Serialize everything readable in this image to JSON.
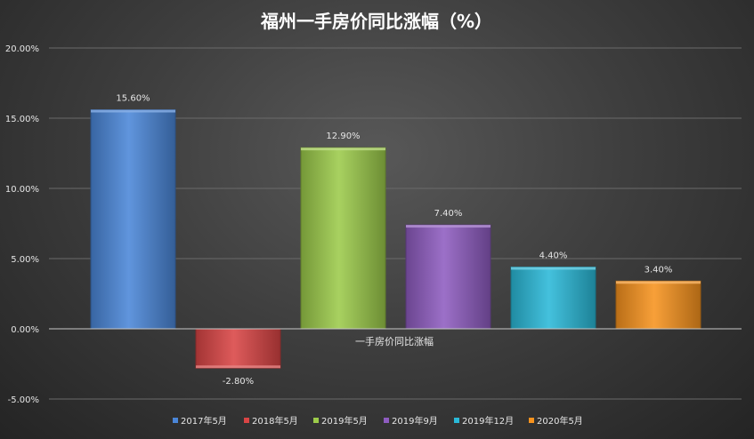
{
  "chart_data": {
    "type": "bar",
    "title": "福州一手房价同比涨幅（%）",
    "category_label": "一手房价同比涨幅",
    "series": [
      {
        "name": "2017年5月",
        "value": 15.6,
        "label": "15.60%",
        "color": "#4a86d8"
      },
      {
        "name": "2018年5月",
        "value": -2.8,
        "label": "-2.80%",
        "color": "#d94545"
      },
      {
        "name": "2019年5月",
        "value": 12.9,
        "label": "12.90%",
        "color": "#9ccb4a"
      },
      {
        "name": "2019年9月",
        "value": 7.4,
        "label": "7.40%",
        "color": "#8e5cc0"
      },
      {
        "name": "2019年12月",
        "value": 4.4,
        "label": "4.40%",
        "color": "#2ab9d8"
      },
      {
        "name": "2020年5月",
        "value": 3.4,
        "label": "3.40%",
        "color": "#f7931e"
      }
    ],
    "ylim": [
      -5,
      20
    ],
    "yticks": [
      {
        "value": 20,
        "label": "20.00%"
      },
      {
        "value": 15,
        "label": "15.00%"
      },
      {
        "value": 10,
        "label": "10.00%"
      },
      {
        "value": 5,
        "label": "5.00%"
      },
      {
        "value": 0,
        "label": "0.00%"
      },
      {
        "value": -5,
        "label": "-5.00%"
      }
    ],
    "grid": true,
    "legend": "bottom"
  }
}
